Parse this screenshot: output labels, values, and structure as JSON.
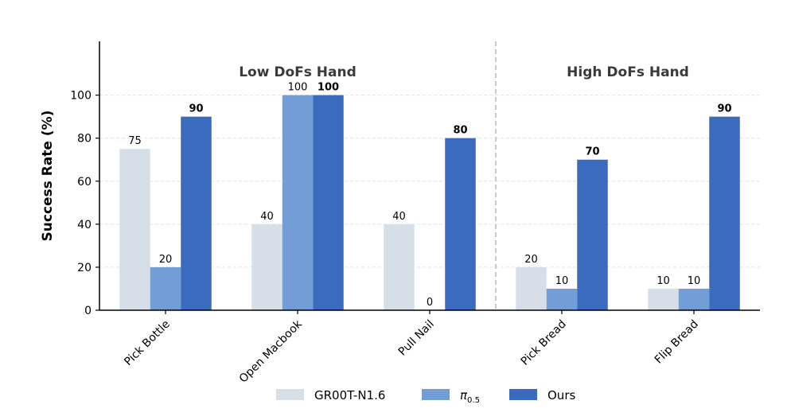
{
  "chart_data": {
    "type": "bar",
    "ylabel": "Success Rate (%)",
    "ylim": [
      0,
      125
    ],
    "yticks": [
      0,
      20,
      40,
      60,
      80,
      100
    ],
    "grid": true,
    "legend_placement": "bottom-center",
    "categories": [
      "Pick Bottle",
      "Open Macbook",
      "Pull Nail",
      "Pick Bread",
      "Flip Bread"
    ],
    "groups": [
      {
        "title": "Low DoFs Hand",
        "categories": [
          "Pick Bottle",
          "Open Macbook",
          "Pull Nail"
        ]
      },
      {
        "title": "High DoFs Hand",
        "categories": [
          "Pick Bread",
          "Flip Bread"
        ]
      }
    ],
    "series": [
      {
        "name": "GR00T-N1.6",
        "legend_main": "GR00T-N1.6",
        "legend_sub": "",
        "color": "#d6dfe8",
        "values": [
          75,
          40,
          40,
          20,
          10
        ],
        "bold": false
      },
      {
        "name": "π0.5",
        "legend_main": "π",
        "legend_sub": "0.5",
        "color": "#729dd6",
        "values": [
          20,
          100,
          0,
          10,
          10
        ],
        "bold": false
      },
      {
        "name": "Ours",
        "legend_main": "Ours",
        "legend_sub": "",
        "color": "#3a6bbf",
        "values": [
          90,
          100,
          80,
          70,
          90
        ],
        "bold": true
      }
    ]
  }
}
